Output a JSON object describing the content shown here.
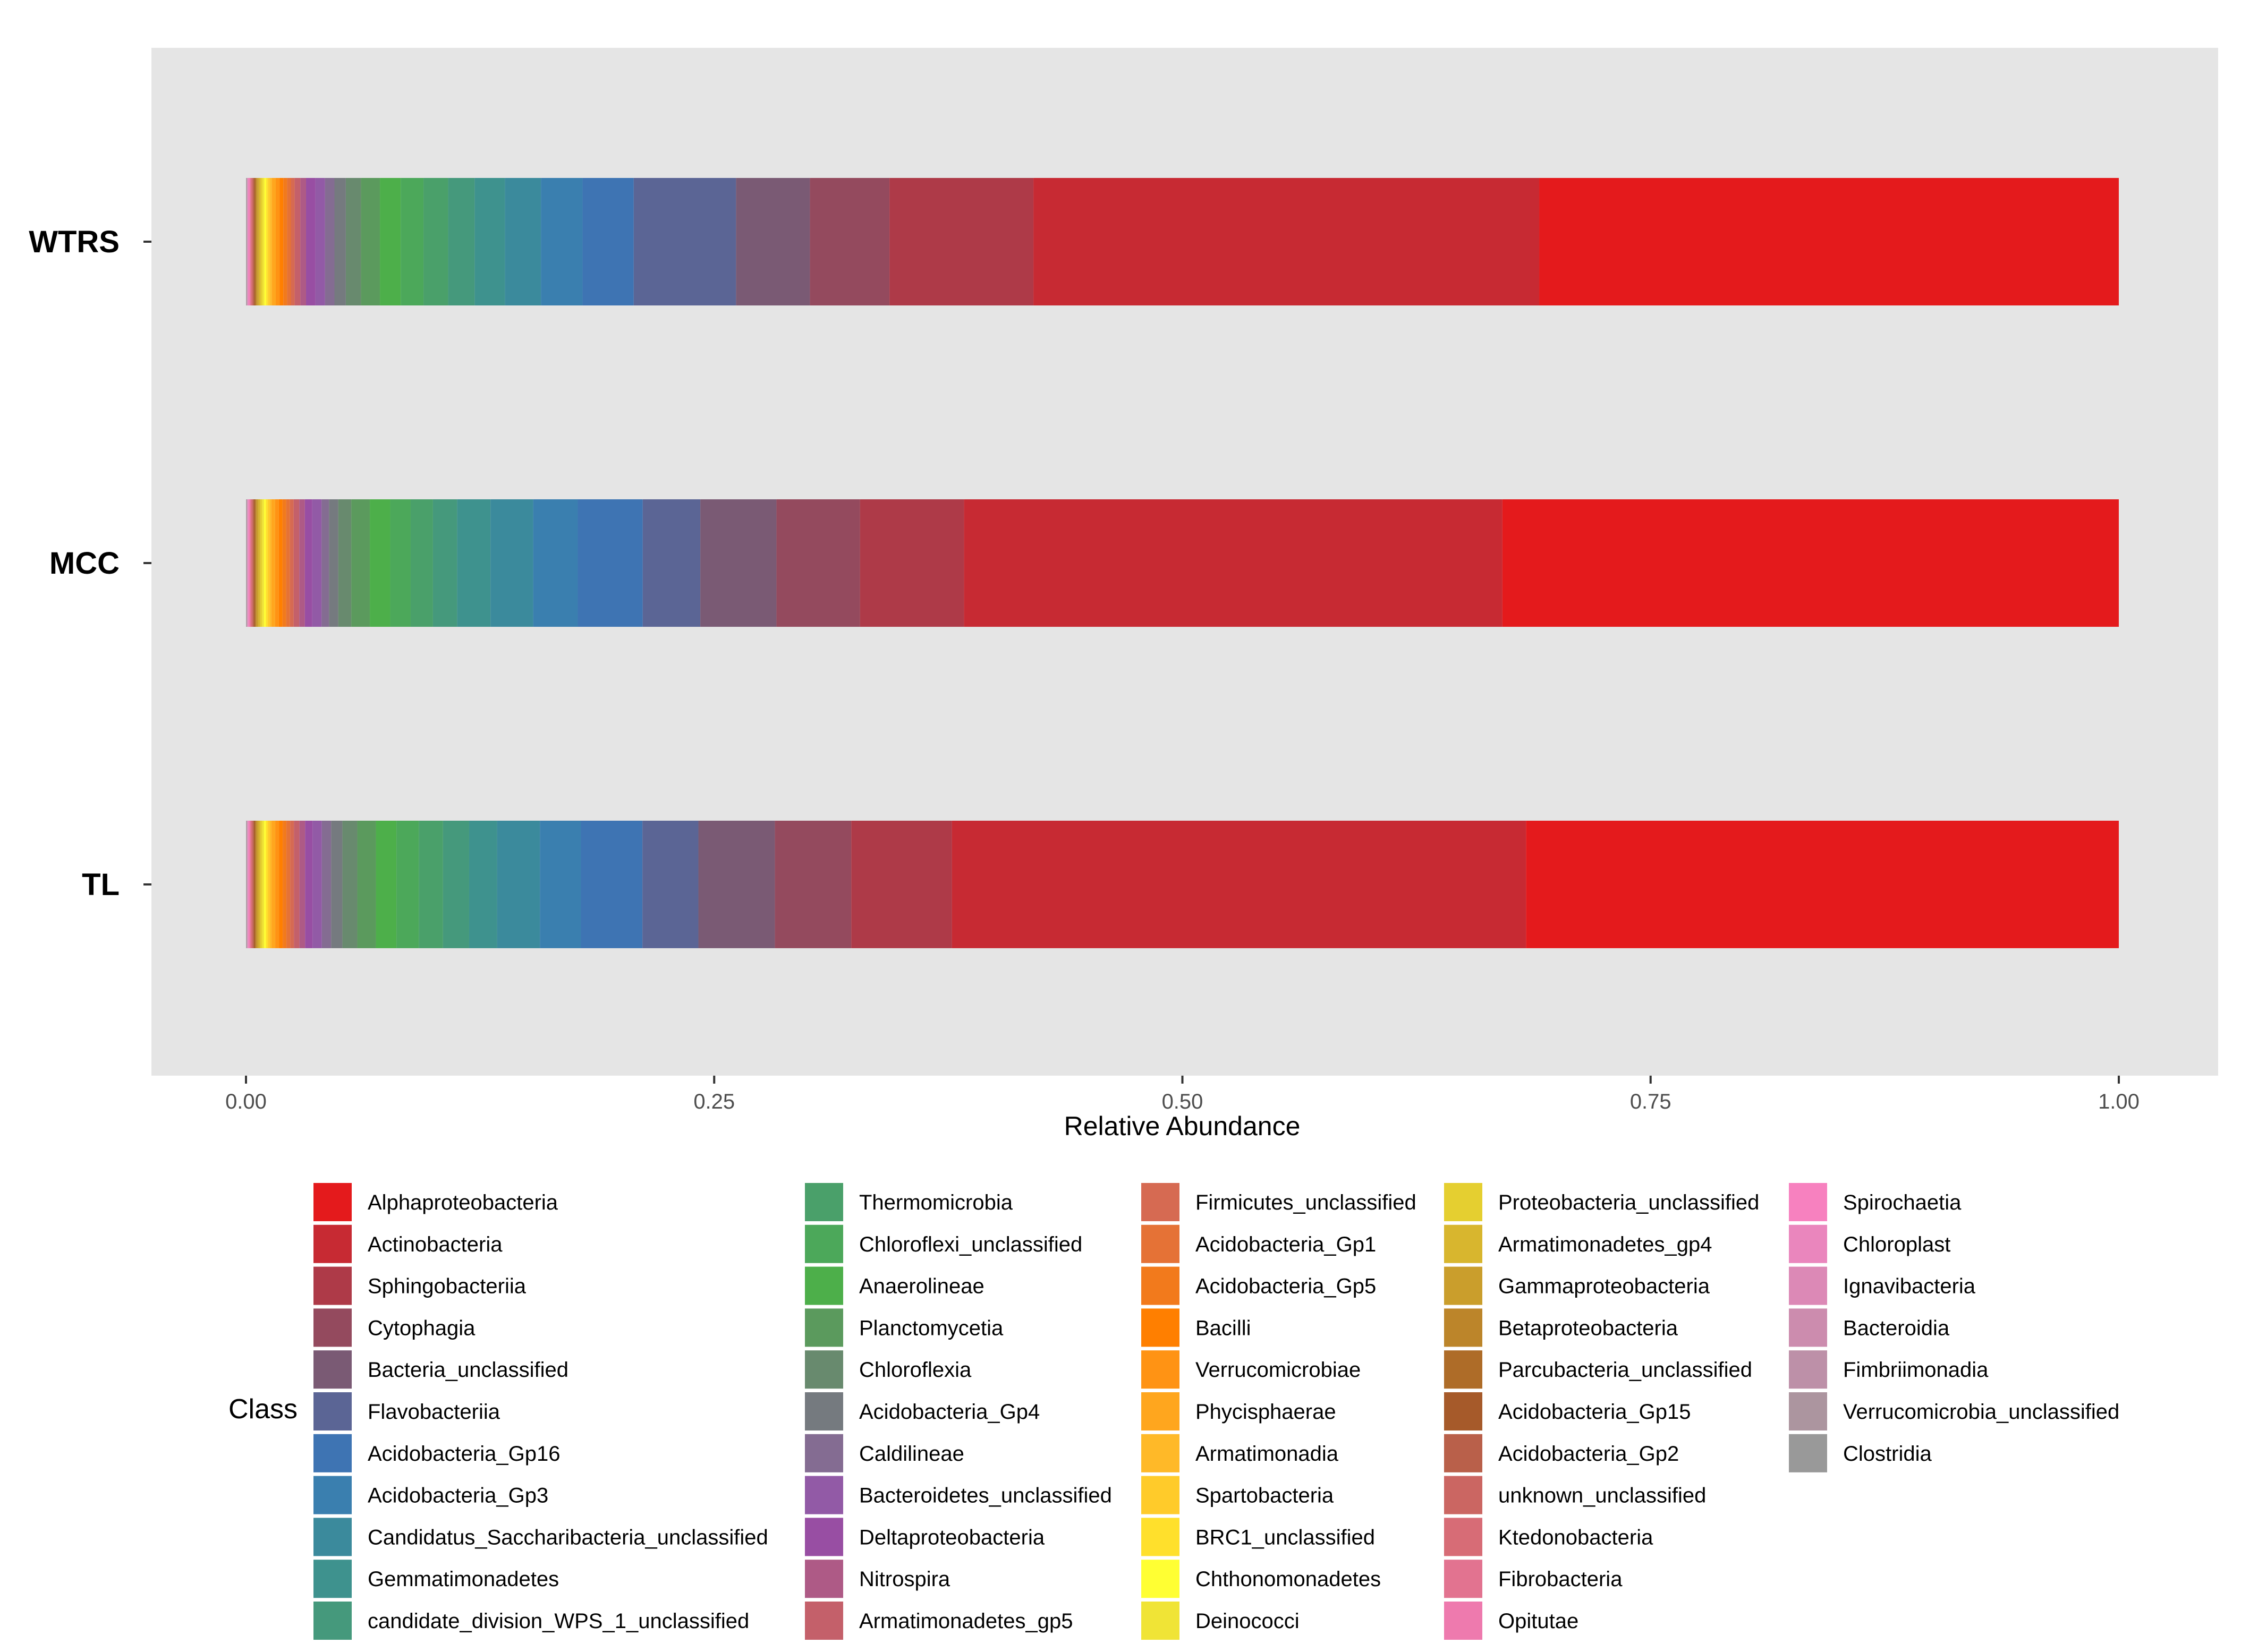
{
  "chart_data": {
    "type": "bar",
    "orientation": "horizontal",
    "stacked": true,
    "title": "",
    "xlabel": "Relative Abundance",
    "ylabel": "",
    "xlim": [
      0,
      1
    ],
    "xticks": [
      "0.00",
      "0.25",
      "0.50",
      "0.75",
      "1.00"
    ],
    "xtick_values": [
      0,
      0.25,
      0.5,
      0.75,
      1.0
    ],
    "categories": [
      "WTRS",
      "MCC",
      "TL"
    ],
    "legend_title": "Class",
    "legend_position": "bottom",
    "grid": false,
    "series": [
      {
        "name": "Alphaproteobacteria",
        "color": "#E41A1C",
        "values": [
          0.306,
          0.332,
          0.318
        ]
      },
      {
        "name": "Actinobacteria",
        "color": "#C72A33",
        "values": [
          0.267,
          0.29,
          0.308
        ]
      },
      {
        "name": "Sphingobacteriia",
        "color": "#AE3A48",
        "values": [
          0.076,
          0.056,
          0.054
        ]
      },
      {
        "name": "Cytophagia",
        "color": "#944A5E",
        "values": [
          0.042,
          0.045,
          0.041
        ]
      },
      {
        "name": "Bacteria_unclassified",
        "color": "#7A5A74",
        "values": [
          0.039,
          0.041,
          0.041
        ]
      },
      {
        "name": "Flavobacteriia",
        "color": "#5B6595",
        "values": [
          0.054,
          0.031,
          0.03
        ]
      },
      {
        "name": "Acidobacteria_Gp16",
        "color": "#3E74B3",
        "values": [
          0.027,
          0.035,
          0.033
        ]
      },
      {
        "name": "Acidobacteria_Gp3",
        "color": "#3A7FAF",
        "values": [
          0.022,
          0.024,
          0.022
        ]
      },
      {
        "name": "Candidatus_Saccharibacteria_unclassified",
        "color": "#3B8A9C",
        "values": [
          0.019,
          0.023,
          0.023
        ]
      },
      {
        "name": "Gemmatimonadetes",
        "color": "#3E928E",
        "values": [
          0.016,
          0.018,
          0.015
        ]
      },
      {
        "name": "candidate_division_WPS_1_unclassified",
        "color": "#45997C",
        "values": [
          0.014,
          0.013,
          0.014
        ]
      },
      {
        "name": "Thermomicrobia",
        "color": "#4AA06A",
        "values": [
          0.013,
          0.012,
          0.013
        ]
      },
      {
        "name": "Chloroflexi_unclassified",
        "color": "#4CA85A",
        "values": [
          0.012,
          0.011,
          0.012
        ]
      },
      {
        "name": "Anaerolineae",
        "color": "#4DAF4A",
        "values": [
          0.011,
          0.011,
          0.011
        ]
      },
      {
        "name": "Planctomycetia",
        "color": "#5B9A5D",
        "values": [
          0.01,
          0.01,
          0.01
        ]
      },
      {
        "name": "Chloroflexia",
        "color": "#688A6E",
        "values": [
          0.008,
          0.007,
          0.008
        ]
      },
      {
        "name": "Acidobacteria_Gp4",
        "color": "#757A7F",
        "values": [
          0.006,
          0.005,
          0.006
        ]
      },
      {
        "name": "Caldilineae",
        "color": "#846C92",
        "values": [
          0.005,
          0.004,
          0.005
        ]
      },
      {
        "name": "Bacteroidetes_unclassified",
        "color": "#925AA6",
        "values": [
          0.005,
          0.005,
          0.005
        ]
      },
      {
        "name": "Deltaproteobacteria",
        "color": "#984EA3",
        "values": [
          0.005,
          0.004,
          0.004
        ]
      },
      {
        "name": "Nitrospira",
        "color": "#AE5A86",
        "values": [
          0.003,
          0.003,
          0.003
        ]
      },
      {
        "name": "Armatimonadetes_gp5",
        "color": "#C4606A",
        "values": [
          0.003,
          0.003,
          0.003
        ]
      },
      {
        "name": "Firmicutes_unclassified",
        "color": "#D66A52",
        "values": [
          0.002,
          0.002,
          0.002
        ]
      },
      {
        "name": "Acidobacteria_Gp1",
        "color": "#E57236",
        "values": [
          0.002,
          0.002,
          0.002
        ]
      },
      {
        "name": "Acidobacteria_Gp5",
        "color": "#F27A1C",
        "values": [
          0.002,
          0.002,
          0.002
        ]
      },
      {
        "name": "Bacilli",
        "color": "#FF7F00",
        "values": [
          0.002,
          0.002,
          0.002
        ]
      },
      {
        "name": "Verrucomicrobiae",
        "color": "#FF9314",
        "values": [
          0.002,
          0.002,
          0.002
        ]
      },
      {
        "name": "Phycisphaerae",
        "color": "#FFA61E",
        "values": [
          0.002,
          0.002,
          0.002
        ]
      },
      {
        "name": "Armatimonadia",
        "color": "#FFB928",
        "values": [
          0.001,
          0.001,
          0.001
        ]
      },
      {
        "name": "Spartobacteria",
        "color": "#FFCB2A",
        "values": [
          0.001,
          0.001,
          0.001
        ]
      },
      {
        "name": "BRC1_unclassified",
        "color": "#FFE02C",
        "values": [
          0.001,
          0.001,
          0.001
        ]
      },
      {
        "name": "Chthonomonadetes",
        "color": "#FFFF33",
        "values": [
          0.001,
          0.001,
          0.001
        ]
      },
      {
        "name": "Deinococci",
        "color": "#F0E436",
        "values": [
          0.001,
          0.001,
          0.001
        ]
      },
      {
        "name": "Proteobacteria_unclassified",
        "color": "#E5CF30",
        "values": [
          0.001,
          0.001,
          0.001
        ]
      },
      {
        "name": "Armatimonadetes_gp4",
        "color": "#D8B62E",
        "values": [
          0.001,
          0.001,
          0.001
        ]
      },
      {
        "name": "Gammaproteobacteria",
        "color": "#CA9E2C",
        "values": [
          0.001,
          0.001,
          0.001
        ]
      },
      {
        "name": "Betaproteobacteria",
        "color": "#BC852A",
        "values": [
          0.0005,
          0.0005,
          0.0005
        ]
      },
      {
        "name": "Parcubacteria_unclassified",
        "color": "#AE6C28",
        "values": [
          0.0005,
          0.0005,
          0.0005
        ]
      },
      {
        "name": "Acidobacteria_Gp15",
        "color": "#A65A2A",
        "values": [
          0.0005,
          0.0005,
          0.0005
        ]
      },
      {
        "name": "Acidobacteria_Gp2",
        "color": "#B9604A",
        "values": [
          0.0005,
          0.0005,
          0.0005
        ]
      },
      {
        "name": "unknown_unclassified",
        "color": "#CB6662",
        "values": [
          0.0005,
          0.0005,
          0.0005
        ]
      },
      {
        "name": "Ktedonobacteria",
        "color": "#D76C76",
        "values": [
          0.0005,
          0.0005,
          0.0005
        ]
      },
      {
        "name": "Fibrobacteria",
        "color": "#E27390",
        "values": [
          0.0005,
          0.0005,
          0.0005
        ]
      },
      {
        "name": "Opitutae",
        "color": "#EE7AAE",
        "values": [
          0.0005,
          0.0005,
          0.0005
        ]
      },
      {
        "name": "Spirochaetia",
        "color": "#F781BF",
        "values": [
          0.0003,
          0.0003,
          0.0003
        ]
      },
      {
        "name": "Chloroplast",
        "color": "#EA86BD",
        "values": [
          0.0003,
          0.0003,
          0.0003
        ]
      },
      {
        "name": "Ignavibacteria",
        "color": "#DC89B6",
        "values": [
          0.0003,
          0.0003,
          0.0003
        ]
      },
      {
        "name": "Bacteroidia",
        "color": "#CC8CAE",
        "values": [
          0.0002,
          0.0002,
          0.0002
        ]
      },
      {
        "name": "Fimbriimonadia",
        "color": "#BD90A8",
        "values": [
          0.0002,
          0.0002,
          0.0002
        ]
      },
      {
        "name": "Verrucomicrobia_unclassified",
        "color": "#AC959F",
        "values": [
          0.0002,
          0.0002,
          0.0002
        ]
      },
      {
        "name": "Clostridia",
        "color": "#999999",
        "values": [
          0.0002,
          0.0002,
          0.0002
        ]
      }
    ]
  }
}
